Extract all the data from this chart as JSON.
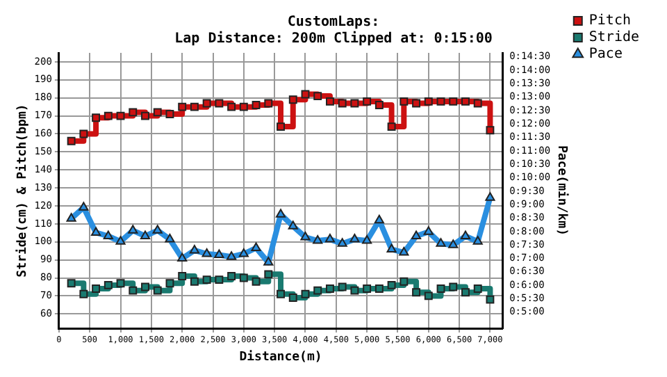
{
  "chart_data": {
    "type": "line",
    "title": "CustomLaps:",
    "subtitle": "Lap Distance: 200m Clipped at: 0:15:00",
    "xlabel": "Distance(m)",
    "ylabel": "Stride(cm) & Pitch(bpm)",
    "y2label": "Pace(min/km)",
    "x": [
      200,
      400,
      600,
      800,
      1000,
      1200,
      1400,
      1600,
      1800,
      2000,
      2200,
      2400,
      2600,
      2800,
      3000,
      3200,
      3400,
      3600,
      3800,
      4000,
      4200,
      4400,
      4600,
      4800,
      5000,
      5200,
      5400,
      5600,
      5800,
      6000,
      6200,
      6400,
      6600,
      6800,
      7000
    ],
    "series": [
      {
        "name": "Pitch",
        "type": "step",
        "color": "#cc1111",
        "marker": "square",
        "values": [
          156,
          160,
          169,
          170,
          170,
          172,
          170,
          172,
          171,
          175,
          175,
          177,
          177,
          175,
          175,
          176,
          177,
          164,
          179,
          182,
          181,
          178,
          177,
          177,
          178,
          176,
          164,
          178,
          177,
          178,
          178,
          178,
          178,
          177,
          162
        ]
      },
      {
        "name": "Stride",
        "type": "step",
        "color": "#1a7a70",
        "marker": "square",
        "values": [
          77,
          71,
          74,
          76,
          77,
          73,
          75,
          73,
          77,
          81,
          78,
          79,
          79,
          81,
          80,
          78,
          82,
          71,
          69,
          71,
          73,
          74,
          75,
          73,
          74,
          74,
          76,
          78,
          72,
          70,
          74,
          75,
          72,
          74,
          68
        ]
      },
      {
        "name": "Pace",
        "type": "line",
        "axis": "y2",
        "color": "#2a8fe0",
        "marker": "triangle",
        "values": [
          8.48,
          8.9,
          7.96,
          7.83,
          7.63,
          8.04,
          7.83,
          8.04,
          7.71,
          7.0,
          7.3,
          7.17,
          7.13,
          7.06,
          7.17,
          7.39,
          6.85,
          8.64,
          8.2,
          7.79,
          7.66,
          7.71,
          7.55,
          7.71,
          7.66,
          8.42,
          7.34,
          7.22,
          7.83,
          7.99,
          7.55,
          7.5,
          7.83,
          7.63,
          9.26
        ]
      }
    ],
    "xlim": [
      0,
      7200
    ],
    "xticks": [
      0,
      500,
      {
        "value": 1000,
        "label": "1,000"
      },
      {
        "value": 1500,
        "label": "1,500"
      },
      {
        "value": 2000,
        "label": "2,000"
      },
      {
        "value": 2500,
        "label": "2,500"
      },
      {
        "value": 3000,
        "label": "3,000"
      },
      {
        "value": 3500,
        "label": "3,500"
      },
      {
        "value": 4000,
        "label": "4,000"
      },
      {
        "value": 4500,
        "label": "4,500"
      },
      {
        "value": 5000,
        "label": "5,000"
      },
      {
        "value": 5500,
        "label": "5,500"
      },
      {
        "value": 6000,
        "label": "6,000"
      },
      {
        "value": 6500,
        "label": "6,500"
      },
      {
        "value": 7000,
        "label": "7,000"
      }
    ],
    "ylim": [
      52,
      205
    ],
    "yticks": [
      60,
      70,
      80,
      90,
      100,
      110,
      120,
      130,
      140,
      150,
      160,
      170,
      180,
      190,
      200
    ],
    "y2lim": [
      4.4,
      14.65
    ],
    "y2ticks": [
      {
        "value": 5,
        "label": "0:5:00"
      },
      {
        "value": 5.5,
        "label": "0:5:30"
      },
      {
        "value": 6,
        "label": "0:6:00"
      },
      {
        "value": 6.5,
        "label": "0:6:30"
      },
      {
        "value": 7,
        "label": "0:7:00"
      },
      {
        "value": 7.5,
        "label": "0:7:30"
      },
      {
        "value": 8,
        "label": "0:8:00"
      },
      {
        "value": 8.5,
        "label": "0:8:30"
      },
      {
        "value": 9,
        "label": "0:9:00"
      },
      {
        "value": 9.5,
        "label": "0:9:30"
      },
      {
        "value": 10,
        "label": "0:10:00"
      },
      {
        "value": 10.5,
        "label": "0:10:30"
      },
      {
        "value": 11,
        "label": "0:11:00"
      },
      {
        "value": 11.5,
        "label": "0:11:30"
      },
      {
        "value": 12,
        "label": "0:12:00"
      },
      {
        "value": 12.5,
        "label": "0:12:30"
      },
      {
        "value": 13,
        "label": "0:13:00"
      },
      {
        "value": 13.5,
        "label": "0:13:30"
      },
      {
        "value": 14,
        "label": "0:14:00"
      },
      {
        "value": 14.5,
        "label": "0:14:30"
      }
    ],
    "grid": true,
    "legend": "top right"
  }
}
